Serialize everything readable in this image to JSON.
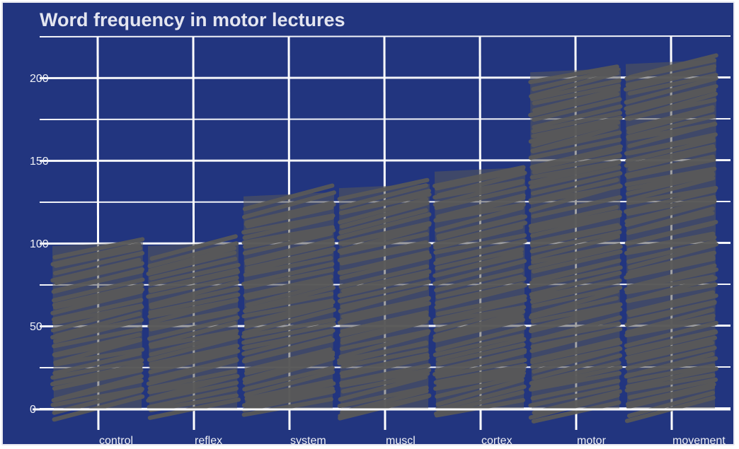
{
  "chart_data": {
    "type": "bar",
    "title": "Word frequency in motor lectures",
    "xlabel": "",
    "ylabel": "",
    "categories": [
      "control",
      "reflex",
      "system",
      "muscl",
      "cortex",
      "motor",
      "movement"
    ],
    "values": [
      100,
      100,
      130,
      135,
      145,
      205,
      210
    ],
    "ylim": [
      0,
      200
    ],
    "yticks": [
      "0",
      "50",
      "100",
      "150",
      "200"
    ],
    "grid": true,
    "legend": "none",
    "style": "sketchy hatched bars",
    "colors": {
      "background": "#22357f",
      "bar": "#585858",
      "grid": "#ffffff",
      "text": "#eef0f6"
    }
  }
}
